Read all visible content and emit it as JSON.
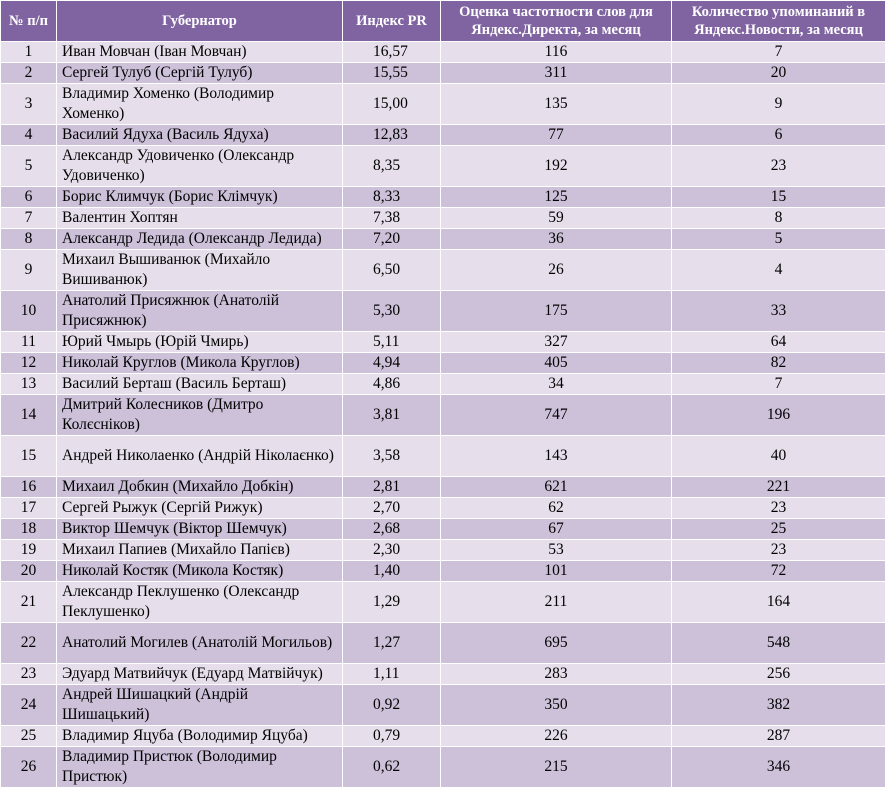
{
  "headers": {
    "num": "№ п/п",
    "governor": "Губернатор",
    "pr": "Индекс PR",
    "freq": "Оценка частотности слов для Яндекс.Директа, за месяц",
    "news": "Количество упоминаний в Яндекс.Новости, за месяц"
  },
  "rows": [
    {
      "num": "1",
      "name": "Иван Мовчан (Іван Мовчан)",
      "pr": "16,57",
      "freq": "116",
      "news": "7"
    },
    {
      "num": "2",
      "name": "Сергей Тулуб (Сергій Тулуб)",
      "pr": "15,55",
      "freq": "311",
      "news": "20"
    },
    {
      "num": "3",
      "name": "Владимир Хоменко (Володимир Хоменко)",
      "pr": "15,00",
      "freq": "135",
      "news": "9"
    },
    {
      "num": "4",
      "name": "Василий Ядуха (Василь Ядуха)",
      "pr": "12,83",
      "freq": "77",
      "news": "6"
    },
    {
      "num": "5",
      "name": "Александр Удовиченко (Олександр Удовиченко)",
      "pr": "8,35",
      "freq": "192",
      "news": "23"
    },
    {
      "num": "6",
      "name": "Борис Климчук (Борис Клімчук)",
      "pr": "8,33",
      "freq": "125",
      "news": "15"
    },
    {
      "num": "7",
      "name": "Валентин Хоптян",
      "pr": "7,38",
      "freq": "59",
      "news": "8"
    },
    {
      "num": "8",
      "name": "Александр Ледида (Олександр Ледида)",
      "pr": "7,20",
      "freq": "36",
      "news": "5"
    },
    {
      "num": "9",
      "name": "Михаил Вышиванюк (Михайло Вишиванюк)",
      "pr": "6,50",
      "freq": "26",
      "news": "4"
    },
    {
      "num": "10",
      "name": "Анатолий Присяжнюк (Анатолій Присяжнюк)",
      "pr": "5,30",
      "freq": "175",
      "news": "33"
    },
    {
      "num": "11",
      "name": "Юрий Чмырь (Юрій Чмирь)",
      "pr": "5,11",
      "freq": "327",
      "news": "64"
    },
    {
      "num": "12",
      "name": "Николай Круглов (Микола Круглов)",
      "pr": "4,94",
      "freq": "405",
      "news": "82"
    },
    {
      "num": "13",
      "name": "Василий Берташ (Василь Берташ)",
      "pr": "4,86",
      "freq": "34",
      "news": "7"
    },
    {
      "num": "14",
      "name": "Дмитрий Колесников (Дмитро Колєсніков)",
      "pr": "3,81",
      "freq": "747",
      "news": "196"
    },
    {
      "num": "15",
      "name": "Андрей Николаенко (Андрій Ніколаєнко)",
      "pr": "3,58",
      "freq": "143",
      "news": "40"
    },
    {
      "num": "16",
      "name": "Михаил Добкин (Михайло Добкін)",
      "pr": "2,81",
      "freq": "621",
      "news": "221"
    },
    {
      "num": "17",
      "name": "Сергей Рыжук (Сергій Рижук)",
      "pr": "2,70",
      "freq": "62",
      "news": "23"
    },
    {
      "num": "18",
      "name": "Виктор Шемчук (Віктор Шемчук)",
      "pr": "2,68",
      "freq": "67",
      "news": "25"
    },
    {
      "num": "19",
      "name": "Михаил Папиев (Михайло Папієв)",
      "pr": "2,30",
      "freq": "53",
      "news": "23"
    },
    {
      "num": "20",
      "name": "Николай Костяк (Микола Костяк)",
      "pr": "1,40",
      "freq": "101",
      "news": "72"
    },
    {
      "num": "21",
      "name": "Александр Пеклушенко (Олександр Пеклушенко)",
      "pr": "1,29",
      "freq": "211",
      "news": "164"
    },
    {
      "num": "22",
      "name": "Анатолий Могилев (Анатолій Могильов)",
      "pr": "1,27",
      "freq": "695",
      "news": "548"
    },
    {
      "num": "23",
      "name": "Эдуард Матвийчук (Едуард Матвійчук)",
      "pr": "1,11",
      "freq": "283",
      "news": "256"
    },
    {
      "num": "24",
      "name": "Андрей Шишацкий (Андрій Шишацький)",
      "pr": "0,92",
      "freq": "350",
      "news": "382"
    },
    {
      "num": "25",
      "name": "Владимир Яцуба (Володимир Яцуба)",
      "pr": "0,79",
      "freq": "226",
      "news": "287"
    },
    {
      "num": "26",
      "name": "Владимир Пристюк (Володимир Пристюк)",
      "pr": "0,62",
      "freq": "215",
      "news": "346"
    }
  ]
}
